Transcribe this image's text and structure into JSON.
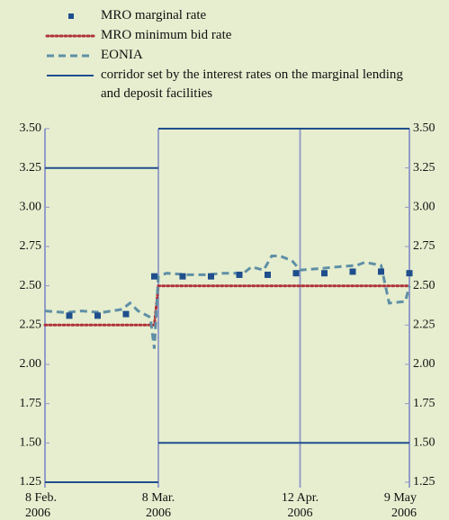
{
  "chart_data": {
    "type": "line",
    "xlim": [
      "2006-02-08",
      "2006-05-09"
    ],
    "xticks": [
      {
        "value": "2006-02-08",
        "label": [
          "8 Feb.",
          "2006"
        ]
      },
      {
        "value": "2006-03-08",
        "label": [
          "8 Mar.",
          "2006"
        ]
      },
      {
        "value": "2006-04-12",
        "label": [
          "12 Apr.",
          "2006"
        ]
      },
      {
        "value": "2006-05-09",
        "label": [
          "9 May",
          "2006"
        ]
      }
    ],
    "ylim": [
      1.25,
      3.5
    ],
    "yticks": [
      {
        "value": 1.25,
        "label": "1.25"
      },
      {
        "value": 1.5,
        "label": "1.50"
      },
      {
        "value": 1.75,
        "label": "1.75"
      },
      {
        "value": 2,
        "label": "2.00"
      },
      {
        "value": 2.25,
        "label": "2.25"
      },
      {
        "value": 2.5,
        "label": "2.50"
      },
      {
        "value": 2.75,
        "label": "2.75"
      },
      {
        "value": 3,
        "label": "3.00"
      },
      {
        "value": 3.25,
        "label": "3.25"
      },
      {
        "value": 3.5,
        "label": "3.50"
      }
    ],
    "y2lim": [
      1.25,
      3.5
    ],
    "y2ticks": [
      {
        "value": 1.25,
        "label": "1.25"
      },
      {
        "value": 1.5,
        "label": "1.50"
      },
      {
        "value": 1.75,
        "label": "1.75"
      },
      {
        "value": 2,
        "label": "2.00"
      },
      {
        "value": 2.25,
        "label": "2.25"
      },
      {
        "value": 2.5,
        "label": "2.50"
      },
      {
        "value": 2.75,
        "label": "2.75"
      },
      {
        "value": 3,
        "label": "3.00"
      },
      {
        "value": 3.25,
        "label": "3.25"
      },
      {
        "value": 3.5,
        "label": "3.50"
      }
    ],
    "series": [
      {
        "name": "MRO marginal rate",
        "style": "squares",
        "color": "#1f4e8c",
        "x": [
          "2006-02-14",
          "2006-02-21",
          "2006-02-28",
          "2006-03-07",
          "2006-03-14",
          "2006-03-21",
          "2006-03-28",
          "2006-04-04",
          "2006-04-11",
          "2006-04-18",
          "2006-04-25",
          "2006-05-02",
          "2006-05-09"
        ],
        "values": [
          2.31,
          2.31,
          2.32,
          2.56,
          2.56,
          2.56,
          2.57,
          2.57,
          2.58,
          2.58,
          2.59,
          2.59,
          2.58
        ]
      },
      {
        "name": "MRO minimum bid rate",
        "style": "dotted",
        "color": "#b0333a",
        "x": [
          "2006-02-08",
          "2006-03-07",
          "2006-03-08",
          "2006-05-09"
        ],
        "values": [
          2.25,
          2.25,
          2.5,
          2.5
        ]
      },
      {
        "name": "EONIA",
        "style": "dashed",
        "color": "#5f8fa6",
        "x": [
          "2006-02-08",
          "2006-02-13",
          "2006-02-17",
          "2006-02-22",
          "2006-02-27",
          "2006-03-01",
          "2006-03-03",
          "2006-03-06",
          "2006-03-07",
          "2006-03-08",
          "2006-03-10",
          "2006-03-15",
          "2006-03-20",
          "2006-03-24",
          "2006-03-29",
          "2006-03-31",
          "2006-04-03",
          "2006-04-05",
          "2006-04-07",
          "2006-04-10",
          "2006-04-12",
          "2006-04-17",
          "2006-04-21",
          "2006-04-26",
          "2006-04-28",
          "2006-05-02",
          "2006-05-04",
          "2006-05-08",
          "2006-05-09"
        ],
        "values": [
          2.34,
          2.33,
          2.34,
          2.33,
          2.35,
          2.39,
          2.34,
          2.3,
          2.1,
          2.56,
          2.58,
          2.57,
          2.57,
          2.58,
          2.58,
          2.62,
          2.6,
          2.69,
          2.69,
          2.66,
          2.6,
          2.61,
          2.62,
          2.63,
          2.65,
          2.63,
          2.39,
          2.4,
          2.5
        ]
      },
      {
        "name": "corridor set by the interest rates on the marginal lending and deposit facilities",
        "style": "solid",
        "color": "#1f4e8c",
        "x": [
          "2006-02-08",
          "2006-03-08",
          "2006-03-08",
          "2006-03-08",
          "2006-05-09"
        ],
        "values": [
          3.25,
          3.25,
          null,
          3.5,
          3.5
        ],
        "lower": [
          1.25,
          1.25,
          null,
          1.5,
          1.5
        ]
      }
    ]
  }
}
